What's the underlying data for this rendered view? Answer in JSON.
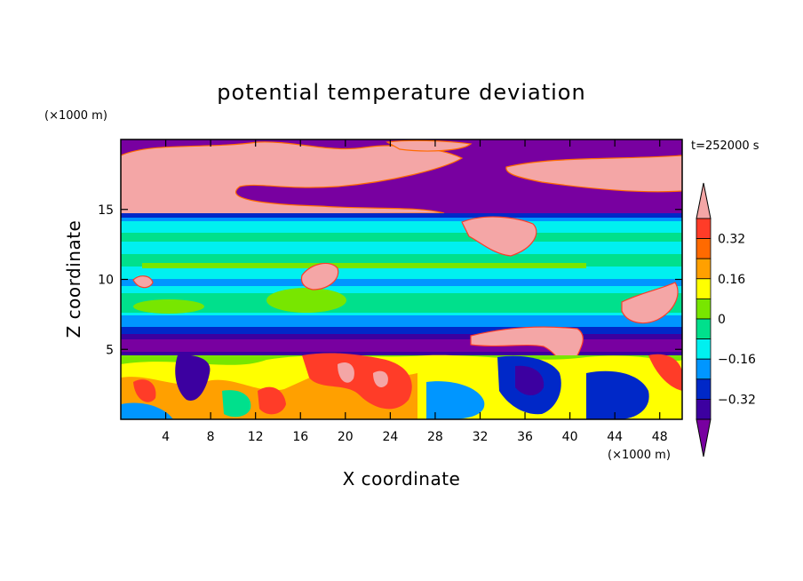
{
  "chart_data": {
    "type": "heatmap",
    "subtype": "filled-contour",
    "title": "potential temperature deviation",
    "xlabel": "X coordinate",
    "ylabel": "Z coordinate",
    "x_unit": "(×1000 m)",
    "y_unit": "(×1000 m)",
    "time_label": "t=252000 s",
    "xlim": [
      0,
      50
    ],
    "ylim": [
      0,
      20
    ],
    "x_ticks": [
      4,
      8,
      12,
      16,
      20,
      24,
      28,
      32,
      36,
      40,
      44,
      48
    ],
    "y_ticks": [
      5,
      10,
      15
    ],
    "x_tick_labels": [
      "4",
      "8",
      "12",
      "16",
      "20",
      "24",
      "28",
      "32",
      "36",
      "40",
      "44",
      "48"
    ],
    "y_tick_labels": [
      "5",
      "10",
      "15"
    ],
    "colorbar": {
      "levels": [
        -0.4,
        -0.32,
        -0.24,
        -0.16,
        -0.08,
        0,
        0.08,
        0.16,
        0.24,
        0.32,
        0.4
      ],
      "labeled_levels": [
        0.32,
        0.16,
        0,
        -0.16,
        -0.32
      ],
      "labels": [
        "0.32",
        "0.16",
        "0",
        "−0.16",
        "−0.32"
      ],
      "colors_high_to_low": [
        "#f4a6a6",
        "#ff3c28",
        "#ff6a00",
        "#ffa000",
        "#ffff00",
        "#78e600",
        "#00e08c",
        "#00f0f0",
        "#0096ff",
        "#0028c8",
        "#3c00a0",
        "#7800a0"
      ],
      "extend": "both"
    },
    "bands": [
      {
        "z_range": [
          17,
          20
        ],
        "dominant": "mixed high (pink) and low (purple) patches",
        "approx_value": 0.4
      },
      {
        "z_range": [
          14.5,
          17
        ],
        "dominant": "pink with purple intrusions",
        "approx_value": 0.4
      },
      {
        "z_range": [
          5.5,
          14.5
        ],
        "dominant": "cyan and green layers, pink blobs",
        "approx_value": 0.0
      },
      {
        "z_range": [
          4.5,
          5.5
        ],
        "dominant": "purple / dark blue layer",
        "approx_value": -0.4
      },
      {
        "z_range": [
          0,
          4.5
        ],
        "dominant": "turbulent red, orange, yellow, green, blue",
        "approx_value": 0.2
      }
    ]
  }
}
